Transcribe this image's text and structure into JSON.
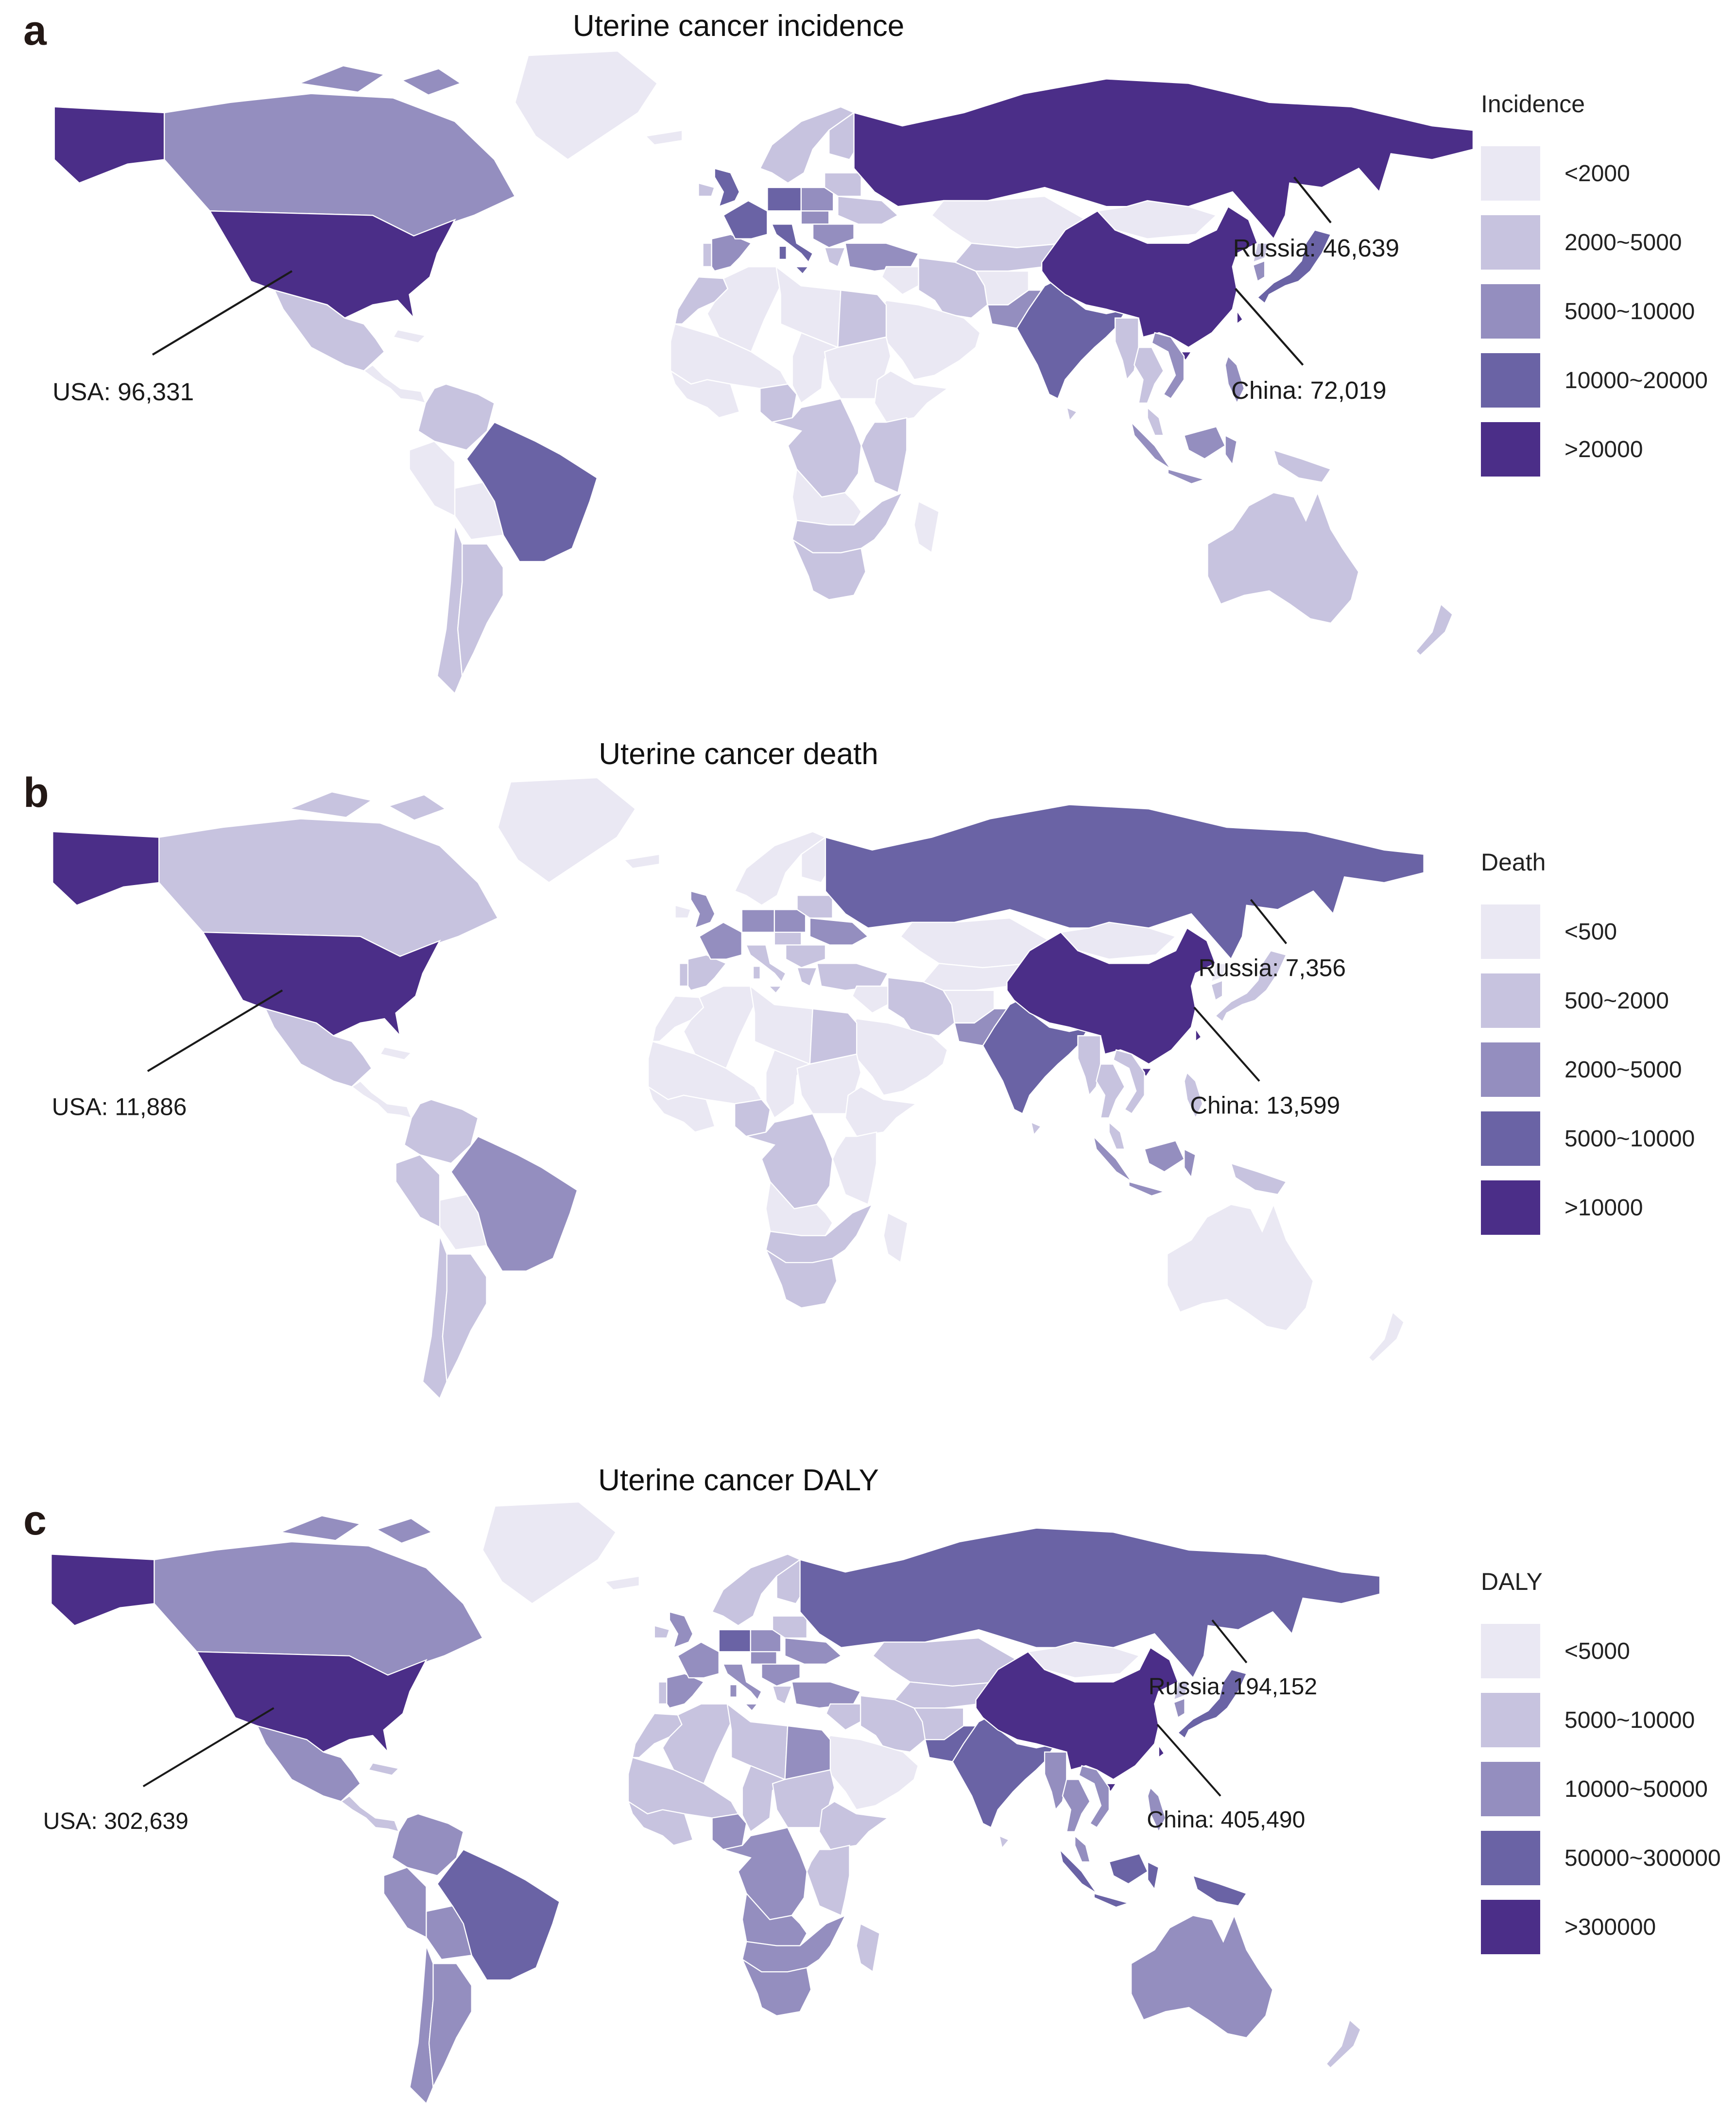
{
  "chart_data": [
    {
      "type": "choropleth_map",
      "title": "Uterine cancer incidence",
      "legend_title": "Incidence",
      "bins": [
        "<2000",
        "2000~5000",
        "5000~10000",
        "10000~20000",
        ">20000"
      ],
      "bin_colors": [
        "#EAE8F3",
        "#C7C3DF",
        "#948EBF",
        "#6A63A5",
        "#4B2E88"
      ],
      "annotated_values": {
        "USA": 96331,
        "Russia": 46639,
        "China": 72019
      },
      "legend_position": "right"
    },
    {
      "type": "choropleth_map",
      "title": "Uterine cancer death",
      "legend_title": "Death",
      "bins": [
        "<500",
        "500~2000",
        "2000~5000",
        "5000~10000",
        ">10000"
      ],
      "bin_colors": [
        "#EAE8F3",
        "#C7C3DF",
        "#948EBF",
        "#6A63A5",
        "#4B2E88"
      ],
      "annotated_values": {
        "USA": 11886,
        "Russia": 7356,
        "China": 13599
      },
      "legend_position": "right"
    },
    {
      "type": "choropleth_map",
      "title": "Uterine cancer DALY",
      "legend_title": "DALY",
      "bins": [
        "<5000",
        "5000~10000",
        "10000~50000",
        "50000~300000",
        ">300000"
      ],
      "bin_colors": [
        "#EAE8F3",
        "#C7C3DF",
        "#948EBF",
        "#6A63A5",
        "#4B2E88"
      ],
      "annotated_values": {
        "USA": 302639,
        "Russia": 194152,
        "China": 405490
      },
      "legend_position": "right"
    }
  ],
  "figure": {
    "level_colors": {
      "1": "#EAE8F3",
      "2": "#C7C3DF",
      "3": "#948EBF",
      "4": "#6A63A5",
      "5": "#4B2E88"
    },
    "panels": [
      {
        "letter": "a",
        "title": "Uterine cancer incidence",
        "legend_title": "Incidence",
        "legend_items": [
          {
            "label": "<2000",
            "color": "#EAE8F3"
          },
          {
            "label": "2000~5000",
            "color": "#C7C3DF"
          },
          {
            "label": "5000~10000",
            "color": "#948EBF"
          },
          {
            "label": "10000~20000",
            "color": "#6A63A5"
          },
          {
            "label": ">20000",
            "color": "#4B2E88"
          }
        ],
        "annotations": [
          {
            "country": "USA",
            "label": "USA: 96,331"
          },
          {
            "country": "Russia",
            "label": "Russia: 46,639"
          },
          {
            "country": "China",
            "label": "China: 72,019"
          }
        ],
        "country_levels": {
          "alaska": 5,
          "usa": 5,
          "canada": 3,
          "arctic-islands": 3,
          "greenland": 1,
          "mexico": 2,
          "central-america": 1,
          "cuba": 1,
          "colombia": 2,
          "peru": 1,
          "brazil": 4,
          "bolivia": 1,
          "chile": 2,
          "argentina": 2,
          "iceland": 1,
          "uk": 4,
          "ireland": 2,
          "portugal": 2,
          "spain": 3,
          "france": 4,
          "germany": 4,
          "italy": 4,
          "scandinavia": 2,
          "finland": 2,
          "poland": 3,
          "baltics": 2,
          "central-europe": 3,
          "ukraine": 2,
          "romania": 3,
          "greece": 2,
          "turkey": 3,
          "russia": 5,
          "kazakhstan": 1,
          "central-asia": 2,
          "afghanistan": 1,
          "pakistan": 3,
          "iran": 2,
          "iraq": 1,
          "saudi": 1,
          "india": 4,
          "sri-lanka": 2,
          "china": 5,
          "mongolia": 1,
          "north-korea": 2,
          "south-korea": 3,
          "japan": 4,
          "myanmar": 2,
          "thailand": 2,
          "vietnam": 3,
          "malaysia": 2,
          "indonesia": 3,
          "png": 2,
          "philippines": 3,
          "australia": 2,
          "new-zealand": 2,
          "morocco": 2,
          "algeria": 1,
          "libya": 1,
          "egypt": 2,
          "west-africa": 1,
          "guinea-coast": 1,
          "nigeria": 2,
          "chad": 1,
          "sudan": 1,
          "ethiopia": 1,
          "drc": 2,
          "east-africa": 2,
          "angola": 1,
          "southern-africa": 2,
          "south-africa": 2,
          "madagascar": 1
        }
      },
      {
        "letter": "b",
        "title": "Uterine cancer death",
        "legend_title": "Death",
        "legend_items": [
          {
            "label": "<500",
            "color": "#EAE8F3"
          },
          {
            "label": "500~2000",
            "color": "#C7C3DF"
          },
          {
            "label": "2000~5000",
            "color": "#948EBF"
          },
          {
            "label": "5000~10000",
            "color": "#6A63A5"
          },
          {
            "label": ">10000",
            "color": "#4B2E88"
          }
        ],
        "annotations": [
          {
            "country": "USA",
            "label": "USA: 11,886"
          },
          {
            "country": "Russia",
            "label": "Russia: 7,356"
          },
          {
            "country": "China",
            "label": "China: 13,599"
          }
        ],
        "country_levels": {
          "alaska": 5,
          "usa": 5,
          "canada": 2,
          "arctic-islands": 2,
          "greenland": 1,
          "mexico": 2,
          "central-america": 1,
          "cuba": 1,
          "colombia": 2,
          "peru": 2,
          "brazil": 3,
          "bolivia": 1,
          "chile": 2,
          "argentina": 2,
          "iceland": 1,
          "uk": 3,
          "ireland": 1,
          "portugal": 2,
          "spain": 2,
          "france": 3,
          "germany": 3,
          "italy": 2,
          "scandinavia": 1,
          "finland": 1,
          "poland": 3,
          "baltics": 2,
          "central-europe": 2,
          "ukraine": 3,
          "romania": 2,
          "greece": 2,
          "turkey": 2,
          "russia": 4,
          "kazakhstan": 1,
          "central-asia": 1,
          "afghanistan": 1,
          "pakistan": 3,
          "iran": 2,
          "iraq": 1,
          "saudi": 1,
          "india": 4,
          "sri-lanka": 2,
          "china": 5,
          "mongolia": 1,
          "north-korea": 1,
          "south-korea": 2,
          "japan": 2,
          "myanmar": 2,
          "thailand": 2,
          "vietnam": 2,
          "malaysia": 2,
          "indonesia": 3,
          "png": 2,
          "philippines": 2,
          "australia": 1,
          "new-zealand": 1,
          "morocco": 1,
          "algeria": 1,
          "libya": 1,
          "egypt": 2,
          "west-africa": 1,
          "guinea-coast": 1,
          "nigeria": 2,
          "chad": 1,
          "sudan": 1,
          "ethiopia": 1,
          "drc": 2,
          "east-africa": 1,
          "angola": 1,
          "southern-africa": 2,
          "south-africa": 2,
          "madagascar": 1
        }
      },
      {
        "letter": "c",
        "title": "Uterine cancer DALY",
        "legend_title": "DALY",
        "legend_items": [
          {
            "label": "<5000",
            "color": "#EAE8F3"
          },
          {
            "label": "5000~10000",
            "color": "#C7C3DF"
          },
          {
            "label": "10000~50000",
            "color": "#948EBF"
          },
          {
            "label": "50000~300000",
            "color": "#6A63A5"
          },
          {
            "label": ">300000",
            "color": "#4B2E88"
          }
        ],
        "annotations": [
          {
            "country": "USA",
            "label": "USA: 302,639"
          },
          {
            "country": "Russia",
            "label": "Russia: 194,152"
          },
          {
            "country": "China",
            "label": "China: 405,490"
          }
        ],
        "country_levels": {
          "alaska": 5,
          "usa": 5,
          "canada": 3,
          "arctic-islands": 3,
          "greenland": 1,
          "mexico": 3,
          "central-america": 2,
          "cuba": 2,
          "colombia": 3,
          "peru": 3,
          "brazil": 4,
          "bolivia": 3,
          "chile": 3,
          "argentina": 3,
          "iceland": 1,
          "uk": 3,
          "ireland": 2,
          "portugal": 2,
          "spain": 3,
          "france": 3,
          "germany": 4,
          "italy": 3,
          "scandinavia": 2,
          "finland": 2,
          "poland": 3,
          "baltics": 2,
          "central-europe": 3,
          "ukraine": 3,
          "romania": 3,
          "greece": 2,
          "turkey": 3,
          "russia": 4,
          "kazakhstan": 2,
          "central-asia": 2,
          "afghanistan": 2,
          "pakistan": 4,
          "iran": 2,
          "iraq": 2,
          "saudi": 1,
          "india": 4,
          "sri-lanka": 2,
          "china": 5,
          "mongolia": 1,
          "north-korea": 2,
          "south-korea": 3,
          "japan": 4,
          "myanmar": 3,
          "thailand": 3,
          "vietnam": 3,
          "malaysia": 3,
          "indonesia": 4,
          "png": 4,
          "philippines": 3,
          "australia": 3,
          "new-zealand": 2,
          "morocco": 2,
          "algeria": 2,
          "libya": 2,
          "egypt": 3,
          "west-africa": 2,
          "guinea-coast": 2,
          "nigeria": 3,
          "chad": 2,
          "sudan": 2,
          "ethiopia": 2,
          "drc": 3,
          "east-africa": 2,
          "angola": 3,
          "southern-africa": 3,
          "south-africa": 3,
          "madagascar": 2
        }
      }
    ]
  }
}
